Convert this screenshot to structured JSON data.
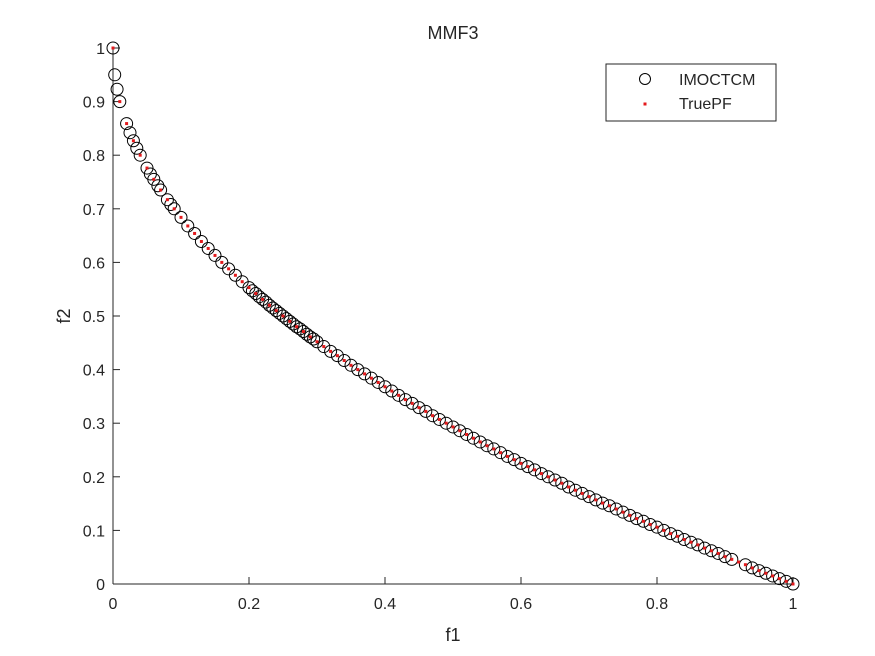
{
  "chart_data": {
    "type": "scatter",
    "title": "MMF3",
    "xlabel": "f1",
    "ylabel": "f2",
    "xlim": [
      0,
      1
    ],
    "ylim": [
      0,
      1
    ],
    "xticks": [
      "0",
      "0.2",
      "0.4",
      "0.6",
      "0.8",
      "1"
    ],
    "yticks": [
      "0",
      "0.1",
      "0.2",
      "0.3",
      "0.4",
      "0.5",
      "0.6",
      "0.7",
      "0.8",
      "0.9",
      "1"
    ],
    "grid": false,
    "legend_position": "top-right",
    "series": [
      {
        "name": "IMOCTCM",
        "marker": "open-circle",
        "color": "#000000",
        "points": [
          [
            0,
            1
          ],
          [
            0.0025,
            0.95
          ],
          [
            0.006,
            0.923
          ],
          [
            0.01,
            0.9
          ],
          [
            0.02,
            0.859
          ],
          [
            0.025,
            0.842
          ],
          [
            0.03,
            0.827
          ],
          [
            0.035,
            0.813
          ],
          [
            0.04,
            0.8
          ],
          [
            0.05,
            0.776
          ],
          [
            0.055,
            0.765
          ],
          [
            0.06,
            0.755
          ],
          [
            0.066,
            0.743
          ],
          [
            0.07,
            0.735
          ],
          [
            0.08,
            0.717
          ],
          [
            0.085,
            0.708
          ],
          [
            0.09,
            0.7
          ],
          [
            0.1,
            0.684
          ],
          [
            0.11,
            0.668
          ],
          [
            0.12,
            0.654
          ],
          [
            0.13,
            0.639
          ],
          [
            0.14,
            0.626
          ],
          [
            0.15,
            0.613
          ],
          [
            0.16,
            0.6
          ],
          [
            0.17,
            0.588
          ],
          [
            0.18,
            0.576
          ],
          [
            0.19,
            0.564
          ],
          [
            0.2,
            0.553
          ],
          [
            0.205,
            0.547
          ],
          [
            0.21,
            0.542
          ],
          [
            0.215,
            0.536
          ],
          [
            0.22,
            0.531
          ],
          [
            0.225,
            0.526
          ],
          [
            0.23,
            0.52
          ],
          [
            0.235,
            0.515
          ],
          [
            0.24,
            0.51
          ],
          [
            0.245,
            0.505
          ],
          [
            0.25,
            0.5
          ],
          [
            0.255,
            0.495
          ],
          [
            0.26,
            0.49
          ],
          [
            0.265,
            0.485
          ],
          [
            0.27,
            0.48
          ],
          [
            0.275,
            0.476
          ],
          [
            0.28,
            0.471
          ],
          [
            0.285,
            0.466
          ],
          [
            0.29,
            0.461
          ],
          [
            0.295,
            0.457
          ],
          [
            0.3,
            0.452
          ],
          [
            0.31,
            0.443
          ],
          [
            0.32,
            0.434
          ],
          [
            0.33,
            0.426
          ],
          [
            0.34,
            0.417
          ],
          [
            0.35,
            0.408
          ],
          [
            0.36,
            0.4
          ],
          [
            0.37,
            0.392
          ],
          [
            0.38,
            0.384
          ],
          [
            0.39,
            0.376
          ],
          [
            0.4,
            0.368
          ],
          [
            0.41,
            0.36
          ],
          [
            0.42,
            0.352
          ],
          [
            0.43,
            0.344
          ],
          [
            0.44,
            0.337
          ],
          [
            0.45,
            0.329
          ],
          [
            0.46,
            0.322
          ],
          [
            0.47,
            0.314
          ],
          [
            0.48,
            0.307
          ],
          [
            0.49,
            0.3
          ],
          [
            0.5,
            0.293
          ],
          [
            0.51,
            0.286
          ],
          [
            0.52,
            0.279
          ],
          [
            0.53,
            0.272
          ],
          [
            0.54,
            0.265
          ],
          [
            0.55,
            0.258
          ],
          [
            0.56,
            0.252
          ],
          [
            0.57,
            0.245
          ],
          [
            0.58,
            0.238
          ],
          [
            0.59,
            0.232
          ],
          [
            0.6,
            0.225
          ],
          [
            0.61,
            0.219
          ],
          [
            0.62,
            0.213
          ],
          [
            0.63,
            0.206
          ],
          [
            0.64,
            0.2
          ],
          [
            0.65,
            0.194
          ],
          [
            0.66,
            0.188
          ],
          [
            0.67,
            0.181
          ],
          [
            0.68,
            0.175
          ],
          [
            0.69,
            0.169
          ],
          [
            0.7,
            0.163
          ],
          [
            0.71,
            0.157
          ],
          [
            0.72,
            0.151
          ],
          [
            0.73,
            0.146
          ],
          [
            0.74,
            0.14
          ],
          [
            0.75,
            0.134
          ],
          [
            0.76,
            0.128
          ],
          [
            0.77,
            0.122
          ],
          [
            0.78,
            0.117
          ],
          [
            0.79,
            0.111
          ],
          [
            0.8,
            0.106
          ],
          [
            0.81,
            0.1
          ],
          [
            0.82,
            0.094
          ],
          [
            0.83,
            0.089
          ],
          [
            0.84,
            0.083
          ],
          [
            0.85,
            0.078
          ],
          [
            0.86,
            0.073
          ],
          [
            0.87,
            0.067
          ],
          [
            0.88,
            0.062
          ],
          [
            0.89,
            0.057
          ],
          [
            0.9,
            0.051
          ],
          [
            0.91,
            0.046
          ],
          [
            0.93,
            0.036
          ],
          [
            0.94,
            0.03
          ],
          [
            0.95,
            0.025
          ],
          [
            0.96,
            0.02
          ],
          [
            0.97,
            0.015
          ],
          [
            0.98,
            0.01
          ],
          [
            0.99,
            0.005
          ],
          [
            1,
            0
          ]
        ]
      },
      {
        "name": "TruePF",
        "marker": "dot",
        "color": "#e41a1c",
        "x": [
          0,
          0.01,
          0.02,
          0.03,
          0.04,
          0.05,
          0.06,
          0.07,
          0.08,
          0.09,
          0.1,
          0.11,
          0.12,
          0.13,
          0.14,
          0.15,
          0.16,
          0.17,
          0.18,
          0.19,
          0.2,
          0.21,
          0.22,
          0.23,
          0.24,
          0.25,
          0.26,
          0.27,
          0.28,
          0.29,
          0.3,
          0.31,
          0.32,
          0.33,
          0.34,
          0.35,
          0.36,
          0.37,
          0.38,
          0.39,
          0.4,
          0.41,
          0.42,
          0.43,
          0.44,
          0.45,
          0.46,
          0.47,
          0.48,
          0.49,
          0.5,
          0.51,
          0.52,
          0.53,
          0.54,
          0.55,
          0.56,
          0.57,
          0.58,
          0.59,
          0.6,
          0.61,
          0.62,
          0.63,
          0.64,
          0.65,
          0.66,
          0.67,
          0.68,
          0.69,
          0.7,
          0.71,
          0.72,
          0.73,
          0.74,
          0.75,
          0.76,
          0.77,
          0.78,
          0.79,
          0.8,
          0.81,
          0.82,
          0.83,
          0.84,
          0.85,
          0.86,
          0.87,
          0.88,
          0.89,
          0.9,
          0.91,
          0.92,
          0.93,
          0.94,
          0.95,
          0.96,
          0.97,
          0.98,
          0.99,
          1
        ],
        "y": [
          1,
          0.9,
          0.859,
          0.827,
          0.8,
          0.776,
          0.755,
          0.735,
          0.717,
          0.7,
          0.684,
          0.668,
          0.654,
          0.639,
          0.626,
          0.613,
          0.6,
          0.588,
          0.576,
          0.564,
          0.553,
          0.542,
          0.531,
          0.52,
          0.51,
          0.5,
          0.49,
          0.48,
          0.471,
          0.461,
          0.452,
          0.443,
          0.434,
          0.426,
          0.417,
          0.408,
          0.4,
          0.392,
          0.384,
          0.376,
          0.368,
          0.36,
          0.352,
          0.344,
          0.337,
          0.329,
          0.322,
          0.314,
          0.307,
          0.3,
          0.293,
          0.286,
          0.279,
          0.272,
          0.265,
          0.258,
          0.252,
          0.245,
          0.238,
          0.232,
          0.225,
          0.219,
          0.213,
          0.206,
          0.2,
          0.194,
          0.188,
          0.181,
          0.175,
          0.169,
          0.163,
          0.157,
          0.151,
          0.146,
          0.14,
          0.134,
          0.128,
          0.122,
          0.117,
          0.111,
          0.106,
          0.1,
          0.094,
          0.089,
          0.083,
          0.078,
          0.073,
          0.067,
          0.062,
          0.057,
          0.051,
          0.046,
          0.041,
          0.036,
          0.03,
          0.025,
          0.02,
          0.015,
          0.01,
          0.005,
          0
        ]
      }
    ]
  }
}
